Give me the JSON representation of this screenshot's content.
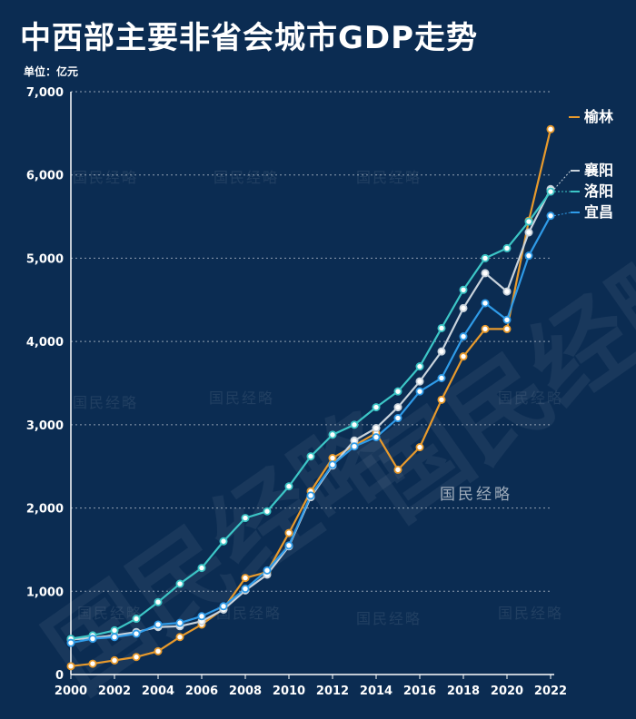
{
  "title": "中西部主要非省会城市GDP走势",
  "unit_label": "单位：亿元",
  "watermark": "国民经略",
  "colors": {
    "background": "#0b2c52",
    "榆林": "#e89a2c",
    "襄阳": "#c9d3dc",
    "洛阳": "#3cc6c6",
    "宜昌": "#2f9be8"
  },
  "chart_data": {
    "type": "line",
    "x": [
      2000,
      2001,
      2002,
      2003,
      2004,
      2005,
      2006,
      2007,
      2008,
      2009,
      2010,
      2011,
      2012,
      2013,
      2014,
      2015,
      2016,
      2017,
      2018,
      2019,
      2020,
      2021,
      2022
    ],
    "x_ticks": [
      2000,
      2002,
      2004,
      2006,
      2008,
      2010,
      2012,
      2014,
      2016,
      2018,
      2020,
      2022
    ],
    "y_ticks": [
      0,
      1000,
      2000,
      3000,
      4000,
      5000,
      6000,
      7000
    ],
    "y_tick_labels": [
      "0",
      "1,000",
      "2,000",
      "3,000",
      "4,000",
      "5,000",
      "6,000",
      "7,000"
    ],
    "ylim": [
      0,
      7000
    ],
    "grid": "horizontal dotted",
    "legend": "right, at line ends",
    "series": [
      {
        "name": "榆林",
        "values": [
          100,
          130,
          170,
          210,
          280,
          450,
          600,
          790,
          1160,
          1230,
          1700,
          2200,
          2600,
          2750,
          2900,
          2460,
          2730,
          3300,
          3820,
          4150,
          4150,
          5450,
          6550
        ]
      },
      {
        "name": "襄阳",
        "values": [
          420,
          440,
          470,
          510,
          570,
          580,
          640,
          780,
          1010,
          1200,
          1540,
          2130,
          2510,
          2810,
          2960,
          3210,
          3520,
          3880,
          4400,
          4820,
          4600,
          5310,
          5830
        ]
      },
      {
        "name": "洛阳",
        "values": [
          430,
          470,
          530,
          670,
          870,
          1090,
          1280,
          1600,
          1880,
          1960,
          2260,
          2620,
          2880,
          3000,
          3210,
          3400,
          3700,
          4160,
          4620,
          5000,
          5120,
          5440,
          5800
        ]
      },
      {
        "name": "宜昌",
        "values": [
          380,
          430,
          450,
          490,
          600,
          620,
          700,
          820,
          1030,
          1250,
          1550,
          2150,
          2520,
          2740,
          2850,
          3080,
          3400,
          3560,
          4060,
          4460,
          4260,
          5030,
          5510
        ]
      }
    ]
  }
}
